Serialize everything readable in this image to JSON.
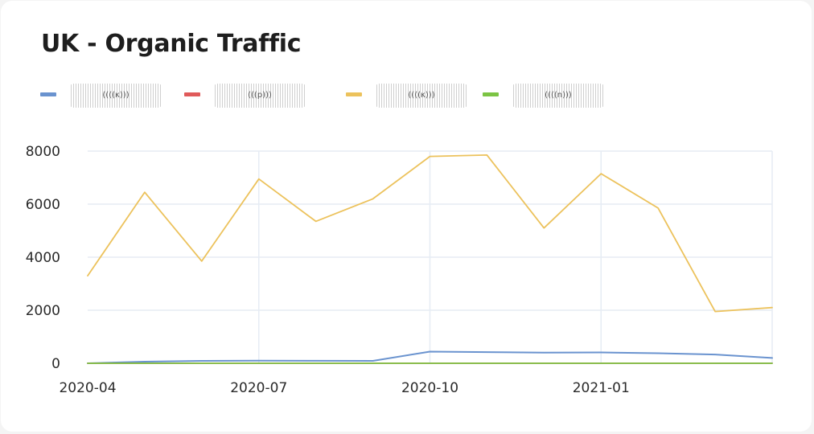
{
  "title": "UK - Organic Traffic",
  "legend": [
    {
      "label": "((((κ)))",
      "color": "#6a93cf",
      "icon": "legend-line-swatch"
    },
    {
      "label": "(((p)))",
      "color": "#e05a5a",
      "icon": "legend-line-swatch"
    },
    {
      "label": "((((κ)))",
      "color": "#ecc25c",
      "icon": "legend-line-swatch"
    },
    {
      "label": "((((n)))",
      "color": "#7cc444",
      "icon": "legend-line-swatch"
    }
  ],
  "chart_data": {
    "type": "line",
    "x": [
      "2020-04",
      "2020-05",
      "2020-06",
      "2020-07",
      "2020-08",
      "2020-09",
      "2020-10",
      "2020-11",
      "2020-12",
      "2021-01",
      "2021-02",
      "2021-03",
      "2021-04"
    ],
    "xtick_labels": [
      "2020-04",
      "2020-07",
      "2020-10",
      "2021-01"
    ],
    "yticks": [
      0,
      2000,
      4000,
      6000,
      8000
    ],
    "ylim": [
      0,
      8000
    ],
    "grid": true,
    "legend_position": "top-left",
    "series": [
      {
        "name": "((((κ)))",
        "color": "#6a93cf",
        "values": [
          0,
          60,
          90,
          100,
          95,
          90,
          440,
          420,
          400,
          410,
          380,
          330,
          200
        ]
      },
      {
        "name": "(((p)))",
        "color": "#e05a5a",
        "values": [
          0,
          0,
          0,
          0,
          0,
          0,
          0,
          0,
          0,
          0,
          0,
          0,
          0
        ]
      },
      {
        "name": "((((κ)))",
        "color": "#ecc25c",
        "values": [
          3300,
          6450,
          3850,
          6950,
          5350,
          6200,
          7800,
          7850,
          5100,
          7150,
          5850,
          1950,
          2100
        ]
      },
      {
        "name": "((((n)))",
        "color": "#7cc444",
        "values": [
          0,
          0,
          0,
          0,
          0,
          0,
          0,
          0,
          0,
          0,
          0,
          0,
          0
        ]
      }
    ]
  }
}
